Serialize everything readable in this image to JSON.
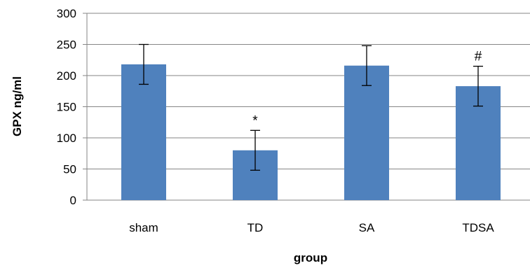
{
  "chart_data": {
    "type": "bar",
    "categories": [
      "sham",
      "TD",
      "SA",
      "TDSA"
    ],
    "values": [
      218,
      80,
      216,
      183
    ],
    "errors": [
      32,
      32,
      32,
      32
    ],
    "annotations": [
      "",
      "*",
      "",
      "#"
    ],
    "xlabel": "group",
    "ylabel": "GPX  ng/ml",
    "ylim": [
      0,
      300
    ],
    "yticks": [
      0,
      50,
      100,
      150,
      200,
      250,
      300
    ],
    "grid": true,
    "bar_color": "#4f81bd",
    "grid_color": "#868686"
  }
}
